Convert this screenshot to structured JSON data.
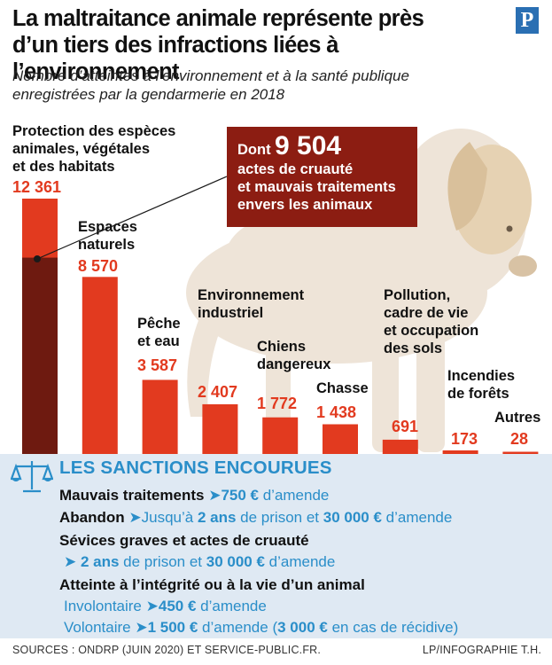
{
  "header": {
    "title_line1": "La maltraitance animale représente près",
    "title_line2": "d’un tiers des infractions liées à l’environnement",
    "subtitle_line1": "Nombre d’atteintes à l’environnement et à la santé publique",
    "subtitle_line2": "enregistrées par la gendarmerie en 2018",
    "logo_letter": "P"
  },
  "colors": {
    "bar": "#e23a1f",
    "bar_highlight": "#6e1a10",
    "value_text": "#e23a1f",
    "callout_bg": "#8c1d12",
    "sanction_bg": "#dfe9f3",
    "sanction_accent": "#2a8ec9"
  },
  "chart_data": {
    "type": "bar",
    "categories": [
      "Protection des espèces animales, végétales et des habitats",
      "Espaces naturels",
      "Pêche et eau",
      "Environnement industriel",
      "Chiens dangereux",
      "Chasse",
      "Pollution, cadre de vie et occupation des sols",
      "Incendies de forêts",
      "Autres"
    ],
    "category_lines": [
      [
        "Protection des espèces",
        "animales, végétales",
        "et des habitats"
      ],
      [
        "Espaces",
        "naturels"
      ],
      [
        "Pêche",
        "et eau"
      ],
      [
        "Environnement",
        "industriel"
      ],
      [
        "Chiens",
        "dangereux"
      ],
      [
        "Chasse"
      ],
      [
        "Pollution,",
        "cadre de vie",
        "et occupation",
        "des sols"
      ],
      [
        "Incendies",
        "de forêts"
      ],
      [
        "Autres"
      ]
    ],
    "values": [
      12361,
      8570,
      3587,
      2407,
      1772,
      1438,
      691,
      173,
      28
    ],
    "value_labels": [
      "12 361",
      "8 570",
      "3 587",
      "2 407",
      "1 772",
      "1 438",
      "691",
      "173",
      "28"
    ],
    "highlight": {
      "category_index": 0,
      "value": 9504,
      "value_label": "9 504",
      "prefix": "Dont",
      "line1": "actes de cruauté",
      "line2": "et mauvais traitements",
      "line3": "envers les animaux"
    },
    "ylim": [
      0,
      12361
    ]
  },
  "sanctions": {
    "title": "LES SANCTIONS ENCOURUES",
    "icon": "scales-icon",
    "l1_label": "Mauvais traitements",
    "l1_arrow": "➤",
    "l1_amount": "750 €",
    "l1_rest": " d’amende",
    "l2_label": "Abandon",
    "l2_arrow": "➤",
    "l2_pre": "Jusqu’à ",
    "l2_years": "2 ans",
    "l2_mid": " de prison et ",
    "l2_amount": "30 000 €",
    "l2_rest": " d’amende",
    "l3_label": "Sévices graves et actes de cruauté",
    "l4_arrow": "➤ ",
    "l4_years": "2 ans",
    "l4_mid": " de prison et ",
    "l4_amount": "30 000 €",
    "l4_rest": " d’amende",
    "l5_label": "Atteinte à l’intégrité ou à la vie d’un animal",
    "l6_label": "Involontaire ",
    "l6_arrow": "➤",
    "l6_amount": "450 €",
    "l6_rest": " d’amende",
    "l7_label": "Volontaire ",
    "l7_arrow": "➤",
    "l7_amount": "1 500 €",
    "l7_mid": " d’amende (",
    "l7_amount2": "3 000 €",
    "l7_rest": " en cas de récidive)"
  },
  "footer": {
    "sources": "SOURCES : ONDRP (JUIN 2020) ET SERVICE-PUBLIC.FR.",
    "credit": "LP/INFOGRAPHIE T.H."
  }
}
